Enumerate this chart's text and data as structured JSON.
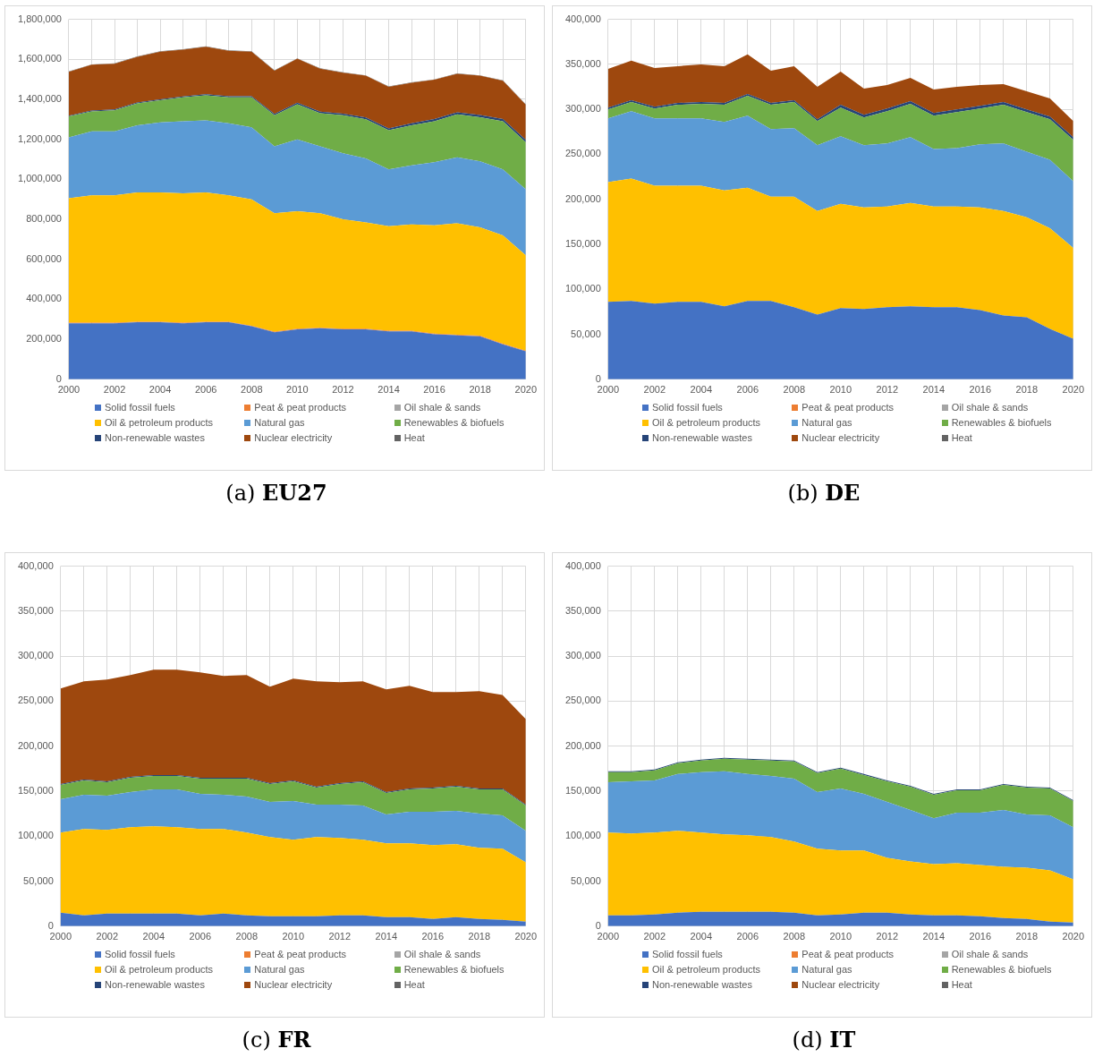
{
  "chart_data": [
    {
      "type": "area",
      "title": "(a) EU27",
      "stacked": true,
      "grid": true,
      "legend": "bottom",
      "categories": [
        "2000",
        null,
        "2002",
        null,
        "2004",
        null,
        "2006",
        null,
        "2008",
        null,
        "2010",
        null,
        "2012",
        null,
        "2014",
        null,
        "2016",
        null,
        "2018",
        null,
        "2020"
      ],
      "ylim": [
        0,
        1800000
      ],
      "yticks": [
        {
          "value": 0,
          "label": "0"
        },
        {
          "value": 200000,
          "label": "200,000"
        },
        {
          "value": 400000,
          "label": "400,000"
        },
        {
          "value": 600000,
          "label": "600,000"
        },
        {
          "value": 800000,
          "label": "800,000"
        },
        {
          "value": 1000000,
          "label": "1,000,000"
        },
        {
          "value": 1200000,
          "label": "1,200,000"
        },
        {
          "value": 1400000,
          "label": "1,400,000"
        },
        {
          "value": 1600000,
          "label": "1,600,000"
        },
        {
          "value": 1800000,
          "label": "1,800,000"
        }
      ],
      "series": [
        {
          "name": "Solid fossil fuels",
          "color": "#4472c4",
          "values": [
            280000,
            280000,
            280000,
            285000,
            285000,
            280000,
            285000,
            285000,
            265000,
            235000,
            250000,
            255000,
            250000,
            250000,
            240000,
            240000,
            225000,
            220000,
            215000,
            175000,
            140000
          ]
        },
        {
          "name": "Peat & peat products",
          "color": "#ed7d31",
          "values": [
            3000,
            3000,
            3000,
            3000,
            3000,
            3000,
            3000,
            3000,
            3000,
            3000,
            3000,
            3000,
            3000,
            3000,
            3000,
            3000,
            3000,
            3000,
            3000,
            3000,
            3000
          ]
        },
        {
          "name": "Oil shale & sands",
          "color": "#a5a5a5",
          "values": [
            null,
            null,
            null,
            null,
            null,
            null,
            null,
            null,
            null,
            null,
            null,
            null,
            null,
            null,
            null,
            null,
            null,
            null,
            null,
            null,
            null
          ]
        },
        {
          "name": "Oil & petroleum products",
          "color": "#ffc000",
          "values": [
            622000,
            637000,
            637000,
            647000,
            647000,
            647000,
            647000,
            632000,
            632000,
            592000,
            587000,
            572000,
            547000,
            532000,
            522000,
            532000,
            542000,
            557000,
            542000,
            542000,
            477000
          ]
        },
        {
          "name": "Natural gas",
          "color": "#5b9bd5",
          "values": [
            305000,
            320000,
            320000,
            335000,
            350000,
            360000,
            360000,
            360000,
            360000,
            335000,
            360000,
            335000,
            330000,
            320000,
            285000,
            295000,
            315000,
            330000,
            330000,
            330000,
            330000
          ]
        },
        {
          "name": "Renewables & biofuels",
          "color": "#70ad47",
          "values": [
            105000,
            100000,
            105000,
            110000,
            110000,
            120000,
            125000,
            130000,
            150000,
            155000,
            175000,
            165000,
            190000,
            195000,
            195000,
            200000,
            205000,
            215000,
            220000,
            240000,
            235000
          ]
        },
        {
          "name": "Non-renewable wastes",
          "color": "#264478",
          "values": [
            3000,
            4000,
            4000,
            4000,
            5000,
            5000,
            6000,
            6000,
            6000,
            7000,
            8000,
            8000,
            8000,
            9000,
            10000,
            10000,
            12000,
            10000,
            12000,
            12000,
            12000
          ]
        },
        {
          "name": "Nuclear electricity",
          "color": "#9e480e",
          "values": [
            220000,
            229000,
            229000,
            229000,
            238000,
            233000,
            237000,
            227000,
            222000,
            216000,
            220000,
            215000,
            205000,
            209000,
            208000,
            203000,
            196000,
            193000,
            196000,
            191000,
            176000
          ]
        },
        {
          "name": "Heat",
          "color": "#636363",
          "values": [
            2000,
            2000,
            2000,
            2000,
            2000,
            2000,
            2000,
            2000,
            2000,
            2000,
            2000,
            2000,
            2000,
            2000,
            2000,
            2000,
            2000,
            2000,
            2000,
            2000,
            2000
          ]
        }
      ]
    },
    {
      "type": "area",
      "title": "(b) DE",
      "stacked": true,
      "grid": true,
      "legend": "bottom",
      "categories": [
        "2000",
        null,
        "2002",
        null,
        "2004",
        null,
        "2006",
        null,
        "2008",
        null,
        "2010",
        null,
        "2012",
        null,
        "2014",
        null,
        "2016",
        null,
        "2018",
        null,
        "2020"
      ],
      "ylim": [
        0,
        400000
      ],
      "yticks": [
        {
          "value": 0,
          "label": "0"
        },
        {
          "value": 50000,
          "label": "50,000"
        },
        {
          "value": 100000,
          "label": "100,000"
        },
        {
          "value": 150000,
          "label": "150,000"
        },
        {
          "value": 200000,
          "label": "200,000"
        },
        {
          "value": 250000,
          "label": "250,000"
        },
        {
          "value": 300000,
          "label": "300,000"
        },
        {
          "value": 350000,
          "label": "350,000"
        },
        {
          "value": 400000,
          "label": "400,000"
        }
      ],
      "series": [
        {
          "name": "Solid fossil fuels",
          "color": "#4472c4",
          "values": [
            86000,
            87000,
            84000,
            86000,
            86000,
            81000,
            87000,
            87000,
            80000,
            72000,
            79000,
            78000,
            80000,
            81000,
            80000,
            80000,
            77000,
            71000,
            69000,
            56000,
            45000
          ]
        },
        {
          "name": "Peat & peat products",
          "color": "#ed7d31",
          "values": [
            null,
            null,
            null,
            null,
            null,
            null,
            null,
            null,
            null,
            null,
            null,
            null,
            null,
            null,
            null,
            null,
            null,
            null,
            null,
            null,
            null
          ]
        },
        {
          "name": "Oil shale & sands",
          "color": "#a5a5a5",
          "values": [
            null,
            null,
            null,
            null,
            null,
            null,
            null,
            null,
            null,
            null,
            null,
            null,
            null,
            null,
            null,
            null,
            null,
            null,
            null,
            null,
            null
          ]
        },
        {
          "name": "Oil & petroleum products",
          "color": "#ffc000",
          "values": [
            133000,
            136000,
            131000,
            129000,
            129000,
            129000,
            126000,
            116000,
            123000,
            115000,
            116000,
            113000,
            112000,
            115000,
            112000,
            112000,
            114000,
            116000,
            111000,
            112000,
            101000
          ]
        },
        {
          "name": "Natural gas",
          "color": "#5b9bd5",
          "values": [
            71000,
            75000,
            75000,
            75000,
            75000,
            76000,
            80000,
            75000,
            76000,
            73000,
            75000,
            69000,
            70000,
            73000,
            64000,
            65000,
            70000,
            75000,
            73000,
            76000,
            74000
          ]
        },
        {
          "name": "Renewables & biofuels",
          "color": "#70ad47",
          "values": [
            10000,
            10000,
            11000,
            15000,
            16000,
            19000,
            22000,
            27000,
            29000,
            27000,
            32000,
            31000,
            36000,
            37000,
            37000,
            40000,
            40000,
            43000,
            44000,
            45000,
            46000
          ]
        },
        {
          "name": "Non-renewable wastes",
          "color": "#264478",
          "values": [
            2000,
            2000,
            2000,
            2000,
            2000,
            2000,
            2000,
            2000,
            2000,
            2000,
            3000,
            3000,
            3000,
            3000,
            3000,
            3000,
            3000,
            3000,
            3000,
            3000,
            3000
          ]
        },
        {
          "name": "Nuclear electricity",
          "color": "#9e480e",
          "values": [
            43000,
            44000,
            43000,
            41000,
            42000,
            41000,
            44000,
            36000,
            38000,
            36000,
            37000,
            29000,
            26000,
            26000,
            26000,
            25000,
            23000,
            20000,
            20000,
            20000,
            18000
          ]
        },
        {
          "name": "Heat",
          "color": "#636363",
          "values": [
            null,
            null,
            null,
            null,
            null,
            null,
            null,
            null,
            null,
            null,
            null,
            null,
            null,
            null,
            null,
            null,
            null,
            null,
            null,
            null,
            null
          ]
        }
      ]
    },
    {
      "type": "area",
      "title": "(c) FR",
      "stacked": true,
      "grid": true,
      "legend": "bottom",
      "categories": [
        "2000",
        null,
        "2002",
        null,
        "2004",
        null,
        "2006",
        null,
        "2008",
        null,
        "2010",
        null,
        "2012",
        null,
        "2014",
        null,
        "2016",
        null,
        "2018",
        null,
        "2020"
      ],
      "ylim": [
        0,
        400000
      ],
      "yticks": [
        {
          "value": 0,
          "label": "0"
        },
        {
          "value": 50000,
          "label": "50,000"
        },
        {
          "value": 100000,
          "label": "100,000"
        },
        {
          "value": 150000,
          "label": "150,000"
        },
        {
          "value": 200000,
          "label": "200,000"
        },
        {
          "value": 250000,
          "label": "250,000"
        },
        {
          "value": 300000,
          "label": "300,000"
        },
        {
          "value": 350000,
          "label": "350,000"
        },
        {
          "value": 400000,
          "label": "400,000"
        }
      ],
      "series": [
        {
          "name": "Solid fossil fuels",
          "color": "#4472c4",
          "values": [
            15000,
            12000,
            14000,
            14000,
            14000,
            14000,
            12000,
            14000,
            12000,
            11000,
            11000,
            11000,
            12000,
            12000,
            10000,
            10000,
            8000,
            10000,
            8000,
            7000,
            5000
          ]
        },
        {
          "name": "Peat & peat products",
          "color": "#ed7d31",
          "values": [
            null,
            null,
            null,
            null,
            null,
            null,
            null,
            null,
            null,
            null,
            null,
            null,
            null,
            null,
            null,
            null,
            null,
            null,
            null,
            null,
            null
          ]
        },
        {
          "name": "Oil shale & sands",
          "color": "#a5a5a5",
          "values": [
            null,
            null,
            null,
            null,
            null,
            null,
            null,
            null,
            null,
            null,
            null,
            null,
            null,
            null,
            null,
            null,
            null,
            null,
            null,
            null,
            null
          ]
        },
        {
          "name": "Oil & petroleum products",
          "color": "#ffc000",
          "values": [
            89000,
            96000,
            93000,
            96000,
            97000,
            96000,
            96000,
            94000,
            92000,
            88000,
            85000,
            88000,
            86000,
            84000,
            82000,
            82000,
            82000,
            81000,
            79000,
            79000,
            66000
          ]
        },
        {
          "name": "Natural gas",
          "color": "#5b9bd5",
          "values": [
            37000,
            38000,
            38000,
            39000,
            41000,
            42000,
            39000,
            38000,
            40000,
            39000,
            43000,
            36000,
            37000,
            38000,
            32000,
            35000,
            37000,
            37000,
            38000,
            37000,
            35000
          ]
        },
        {
          "name": "Renewables & biofuels",
          "color": "#70ad47",
          "values": [
            16000,
            16000,
            15000,
            16000,
            15000,
            15000,
            17000,
            18000,
            20000,
            20000,
            22000,
            19000,
            23000,
            26000,
            24000,
            25000,
            26000,
            27000,
            27000,
            29000,
            28000
          ]
        },
        {
          "name": "Non-renewable wastes",
          "color": "#264478",
          "values": [
            1000,
            1000,
            1000,
            1000,
            1000,
            1000,
            1000,
            1000,
            1000,
            1000,
            1000,
            1000,
            1000,
            1000,
            1000,
            1000,
            1000,
            1000,
            1000,
            1000,
            1000
          ]
        },
        {
          "name": "Nuclear electricity",
          "color": "#9e480e",
          "values": [
            106000,
            109000,
            113000,
            113000,
            117000,
            117000,
            117000,
            113000,
            114000,
            107000,
            113000,
            117000,
            112000,
            111000,
            114000,
            114000,
            106000,
            104000,
            108000,
            104000,
            95000
          ]
        },
        {
          "name": "Heat",
          "color": "#636363",
          "values": [
            null,
            null,
            null,
            null,
            null,
            null,
            null,
            null,
            null,
            null,
            null,
            null,
            null,
            null,
            null,
            null,
            null,
            null,
            null,
            null,
            null
          ]
        }
      ]
    },
    {
      "type": "area",
      "title": "(d) IT",
      "stacked": true,
      "grid": true,
      "legend": "bottom",
      "categories": [
        "2000",
        null,
        "2002",
        null,
        "2004",
        null,
        "2006",
        null,
        "2008",
        null,
        "2010",
        null,
        "2012",
        null,
        "2014",
        null,
        "2016",
        null,
        "2018",
        null,
        "2020"
      ],
      "ylim": [
        0,
        400000
      ],
      "yticks": [
        {
          "value": 0,
          "label": "0"
        },
        {
          "value": 50000,
          "label": "50,000"
        },
        {
          "value": 100000,
          "label": "100,000"
        },
        {
          "value": 150000,
          "label": "150,000"
        },
        {
          "value": 200000,
          "label": "200,000"
        },
        {
          "value": 250000,
          "label": "250,000"
        },
        {
          "value": 300000,
          "label": "300,000"
        },
        {
          "value": 350000,
          "label": "350,000"
        },
        {
          "value": 400000,
          "label": "400,000"
        }
      ],
      "series": [
        {
          "name": "Solid fossil fuels",
          "color": "#4472c4",
          "values": [
            12000,
            12000,
            13000,
            15000,
            16000,
            16000,
            16000,
            16000,
            15000,
            12000,
            13000,
            15000,
            15000,
            13000,
            12000,
            12000,
            11000,
            9000,
            8000,
            5000,
            4000
          ]
        },
        {
          "name": "Peat & peat products",
          "color": "#ed7d31",
          "values": [
            null,
            null,
            null,
            null,
            null,
            null,
            null,
            null,
            null,
            null,
            null,
            null,
            null,
            null,
            null,
            null,
            null,
            null,
            null,
            null,
            null
          ]
        },
        {
          "name": "Oil shale & sands",
          "color": "#a5a5a5",
          "values": [
            null,
            null,
            null,
            null,
            null,
            null,
            null,
            null,
            null,
            null,
            null,
            null,
            null,
            null,
            null,
            null,
            null,
            null,
            null,
            null,
            null
          ]
        },
        {
          "name": "Oil & petroleum products",
          "color": "#ffc000",
          "values": [
            92000,
            91000,
            91000,
            91000,
            88000,
            86000,
            85000,
            83000,
            79000,
            74000,
            71000,
            69000,
            61000,
            59000,
            57000,
            58000,
            57000,
            57000,
            57000,
            57000,
            48000
          ]
        },
        {
          "name": "Natural gas",
          "color": "#5b9bd5",
          "values": [
            56000,
            58000,
            58000,
            63000,
            67000,
            70000,
            68000,
            68000,
            70000,
            63000,
            69000,
            63000,
            62000,
            57000,
            51000,
            56000,
            58000,
            63000,
            59000,
            61000,
            58000
          ]
        },
        {
          "name": "Renewables & biofuels",
          "color": "#70ad47",
          "values": [
            11000,
            10000,
            11000,
            12000,
            13000,
            14000,
            16000,
            17000,
            19000,
            21000,
            22000,
            21000,
            23000,
            26000,
            26000,
            25000,
            25000,
            28000,
            30000,
            30000,
            29000
          ]
        },
        {
          "name": "Non-renewable wastes",
          "color": "#264478",
          "values": [
            1000,
            1000,
            1000,
            1000,
            1000,
            1000,
            1000,
            1000,
            1000,
            1000,
            1000,
            1000,
            1000,
            1000,
            1000,
            1000,
            1000,
            1000,
            1000,
            1000,
            1000
          ]
        },
        {
          "name": "Nuclear electricity",
          "color": "#9e480e",
          "values": [
            null,
            null,
            null,
            null,
            null,
            null,
            null,
            null,
            null,
            null,
            null,
            null,
            null,
            null,
            null,
            null,
            null,
            null,
            null,
            null,
            null
          ]
        },
        {
          "name": "Heat",
          "color": "#636363",
          "values": [
            null,
            null,
            null,
            null,
            null,
            null,
            null,
            null,
            null,
            null,
            null,
            null,
            null,
            null,
            null,
            null,
            null,
            null,
            null,
            null,
            null
          ]
        }
      ]
    }
  ]
}
